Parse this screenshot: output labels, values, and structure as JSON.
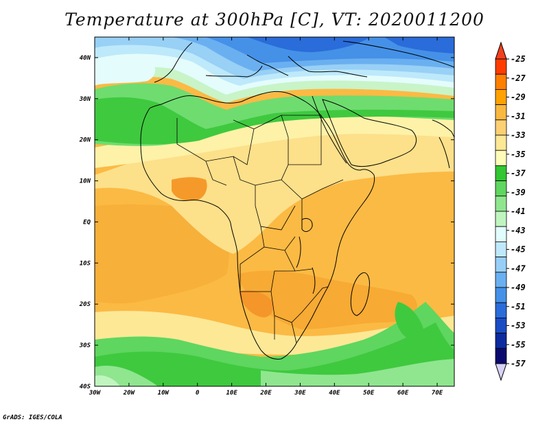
{
  "title": "Temperature at 300hPa [C], VT: 2020011200",
  "credit": "GrADS: IGES/COLA",
  "map": {
    "lat_labels": [
      "40N",
      "30N",
      "20N",
      "10N",
      "EQ",
      "10S",
      "20S",
      "30S",
      "40S"
    ],
    "lon_labels": [
      "30W",
      "20W",
      "10W",
      "0",
      "10E",
      "20E",
      "30E",
      "40E",
      "50E",
      "60E",
      "70E"
    ],
    "lat_range": [
      -40,
      45
    ],
    "lon_range": [
      -30,
      75
    ]
  },
  "colorbar": {
    "labels": [
      "-25",
      "-27",
      "-29",
      "-31",
      "-33",
      "-35",
      "-37",
      "-39",
      "-41",
      "-43",
      "-45",
      "-47",
      "-49",
      "-51",
      "-53",
      "-55",
      "-57"
    ],
    "colors": [
      "#ff3c00",
      "#ff7f00",
      "#ffa200",
      "#f9b83f",
      "#fcd073",
      "#fde896",
      "#fefcb8",
      "#32c632",
      "#5fd65f",
      "#8fe68f",
      "#c0f5c0",
      "#e2fdfd",
      "#bfe9fb",
      "#98cff6",
      "#6ab0f0",
      "#4591e8",
      "#2a6cd9",
      "#1a4cc4",
      "#0c2b9e",
      "#0a0a6e"
    ],
    "triangle_top_color": "#f2401e",
    "triangle_bottom_color": "#d7d3f5"
  }
}
